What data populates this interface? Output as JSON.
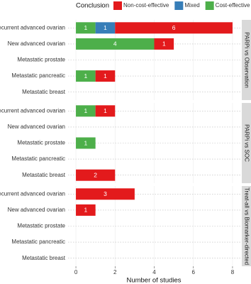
{
  "chart_data": {
    "type": "bar",
    "orientation": "horizontal",
    "stacked": true,
    "legend_title": "Conclusion",
    "legend": "top",
    "x_label": "Number of studies",
    "xlim": [
      -0.4,
      8.4
    ],
    "xticks": [
      0,
      2,
      4,
      6,
      8
    ],
    "grid": true,
    "categories": [
      "Recurrent advanced ovarian",
      "New advanced ovarian",
      "Metastatic prostate",
      "Metastatic pancreatic",
      "Metastatic breast"
    ],
    "series": [
      {
        "name": "Non-cost-effective",
        "color": "#e31a1c"
      },
      {
        "name": "Mixed",
        "color": "#377eb8"
      },
      {
        "name": "Cost-effective",
        "color": "#4daf4a"
      }
    ],
    "facets": [
      {
        "label": "PARPi vs Observation",
        "values": [
          [
            6,
            1,
            0,
            1,
            0
          ],
          [
            1,
            0,
            0,
            0,
            0
          ],
          [
            1,
            4,
            0,
            1,
            0
          ]
        ]
      },
      {
        "label": "PARPi vs SOC",
        "values": [
          [
            1,
            0,
            0,
            0,
            2
          ],
          [
            0,
            0,
            0,
            0,
            0
          ],
          [
            1,
            0,
            1,
            0,
            0
          ]
        ]
      },
      {
        "label": "Treat-all vs Biomarker-directed",
        "values": [
          [
            3,
            1,
            0,
            0,
            0
          ],
          [
            0,
            0,
            0,
            0,
            0
          ],
          [
            0,
            0,
            0,
            0,
            0
          ]
        ]
      }
    ]
  }
}
